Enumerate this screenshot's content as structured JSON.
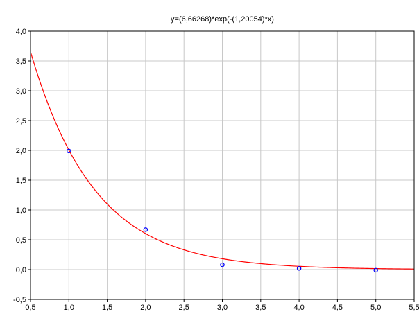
{
  "chart_data": {
    "type": "scatter",
    "title": "y=(6,66268)*exp(-(1,20054)*x)",
    "xlabel": "",
    "ylabel": "",
    "xlim": [
      0.5,
      5.5
    ],
    "ylim": [
      -0.5,
      4.0
    ],
    "x_ticks": [
      0.5,
      1.0,
      1.5,
      2.0,
      2.5,
      3.0,
      3.5,
      4.0,
      4.5,
      5.0,
      5.5
    ],
    "x_tick_labels": [
      "0,5",
      "1,0",
      "1,5",
      "2,0",
      "2,5",
      "3,0",
      "3,5",
      "4,0",
      "4,5",
      "5,0",
      "5,5"
    ],
    "y_ticks": [
      -0.5,
      0.0,
      0.5,
      1.0,
      1.5,
      2.0,
      2.5,
      3.0,
      3.5,
      4.0
    ],
    "y_tick_labels": [
      "-0,5",
      "0,0",
      "0,5",
      "1,0",
      "1,5",
      "2,0",
      "2,5",
      "3,0",
      "3,5",
      "4,0"
    ],
    "grid": true,
    "points": {
      "x": [
        1.0,
        2.0,
        3.0,
        4.0,
        5.0
      ],
      "y": [
        1.99,
        0.67,
        0.08,
        0.02,
        -0.01
      ],
      "color": "#0000ff"
    },
    "fit_curve": {
      "a": 6.66268,
      "b": 1.20054,
      "color": "#ff0000"
    }
  }
}
